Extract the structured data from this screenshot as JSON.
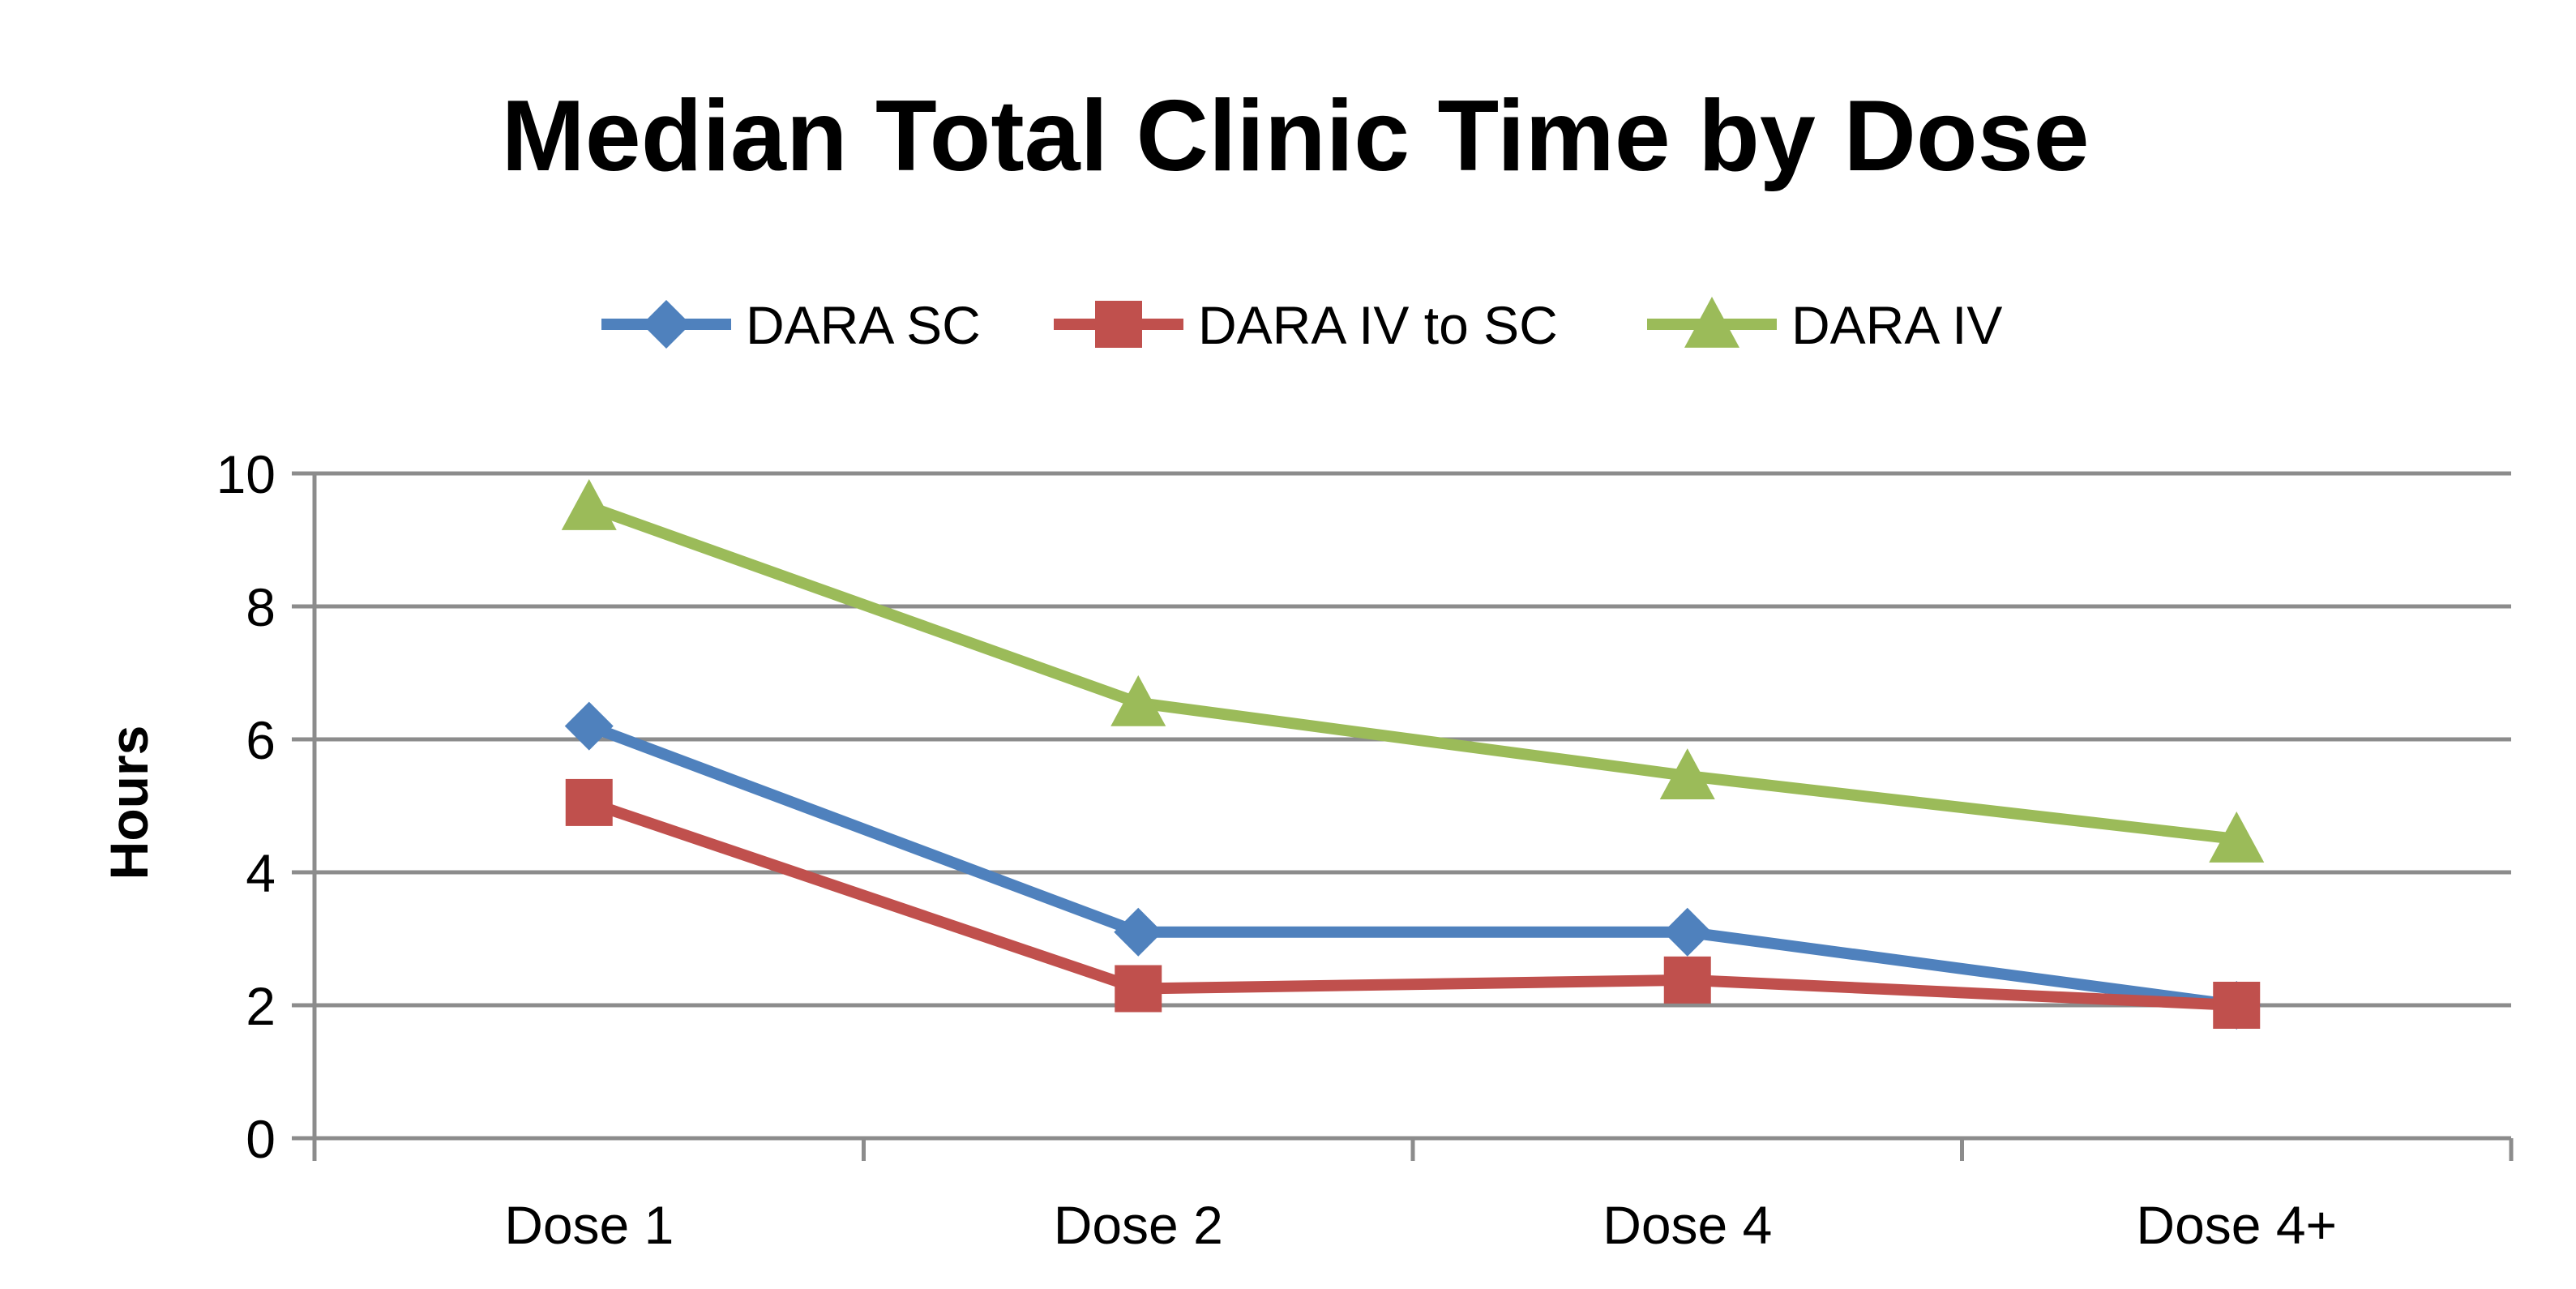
{
  "chart_data": {
    "type": "line",
    "title": "Median Total Clinic Time by Dose",
    "xlabel": "",
    "ylabel": "Hours",
    "categories": [
      "Dose 1",
      "Dose 2",
      "Dose 4",
      "Dose 4+"
    ],
    "ylim": [
      0,
      10
    ],
    "yticks": [
      "0",
      "2",
      "4",
      "6",
      "8",
      "10"
    ],
    "grid": "horizontal",
    "legend_position": "top",
    "series": [
      {
        "name": "DARA SC",
        "values": [
          6.2,
          3.1,
          3.1,
          2.0
        ],
        "color": "#4f81bd",
        "marker": "diamond"
      },
      {
        "name": "DARA IV to SC",
        "values": [
          5.05,
          2.25,
          2.38,
          2.0
        ],
        "color": "#c0504d",
        "marker": "square"
      },
      {
        "name": "DARA IV",
        "values": [
          9.5,
          6.55,
          5.45,
          4.5
        ],
        "color": "#9bbb59",
        "marker": "triangle"
      }
    ]
  }
}
